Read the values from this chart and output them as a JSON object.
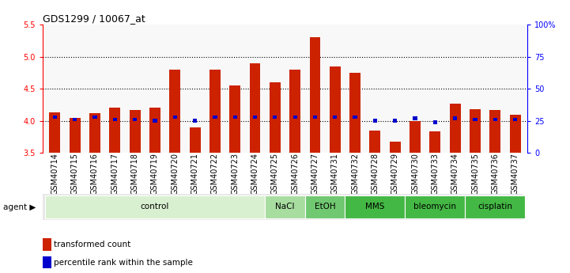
{
  "title": "GDS1299 / 10067_at",
  "samples": [
    "GSM40714",
    "GSM40715",
    "GSM40716",
    "GSM40717",
    "GSM40718",
    "GSM40719",
    "GSM40720",
    "GSM40721",
    "GSM40722",
    "GSM40723",
    "GSM40724",
    "GSM40725",
    "GSM40726",
    "GSM40727",
    "GSM40731",
    "GSM40732",
    "GSM40728",
    "GSM40729",
    "GSM40730",
    "GSM40733",
    "GSM40734",
    "GSM40735",
    "GSM40736",
    "GSM40737"
  ],
  "transformed_count": [
    4.13,
    4.05,
    4.12,
    4.2,
    4.17,
    4.2,
    4.8,
    3.9,
    4.8,
    4.55,
    4.9,
    4.6,
    4.8,
    5.3,
    4.85,
    4.75,
    3.85,
    3.68,
    4.0,
    3.83,
    4.27,
    4.18,
    4.17,
    4.1
  ],
  "percentile": [
    28,
    26,
    28,
    26,
    26,
    25,
    28,
    25,
    28,
    28,
    28,
    28,
    28,
    28,
    28,
    28,
    25,
    25,
    27,
    24,
    27,
    26,
    26,
    26
  ],
  "agents_def": [
    {
      "label": "control",
      "indices": [
        0,
        1,
        2,
        3,
        4,
        5,
        6,
        7,
        8,
        9,
        10
      ],
      "color": "#d8f0d0"
    },
    {
      "label": "NaCl",
      "indices": [
        11,
        12
      ],
      "color": "#a8dda0"
    },
    {
      "label": "EtOH",
      "indices": [
        13,
        14
      ],
      "color": "#70c870"
    },
    {
      "label": "MMS",
      "indices": [
        15,
        16,
        17
      ],
      "color": "#44b844"
    },
    {
      "label": "bleomycin",
      "indices": [
        18,
        19,
        20
      ],
      "color": "#44b844"
    },
    {
      "label": "cisplatin",
      "indices": [
        21,
        22,
        23
      ],
      "color": "#44b844"
    }
  ],
  "ylim": [
    3.5,
    5.5
  ],
  "y2lim": [
    0,
    100
  ],
  "bar_color": "#cc2200",
  "percentile_color": "#0000cc",
  "title_fontsize": 9,
  "tick_fontsize": 7,
  "agent_fontsize": 7.5,
  "legend_fontsize": 7.5
}
